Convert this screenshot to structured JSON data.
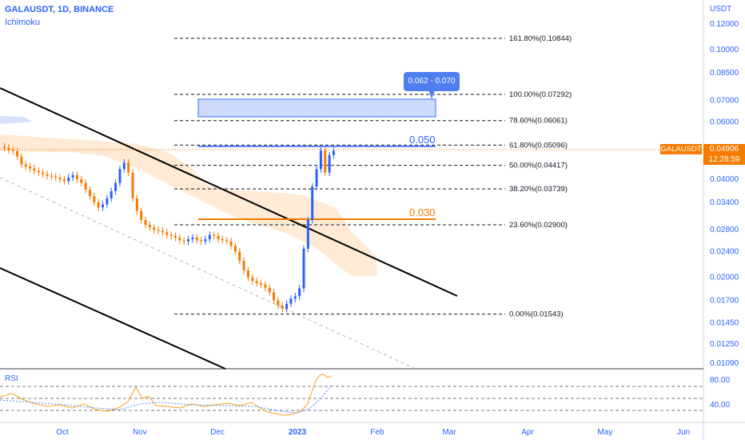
{
  "header": {
    "title": "GALAUSDT, 1D, BINANCE",
    "indicator": "Ichimoku",
    "rsi_label": "RSI",
    "currency": "USDT"
  },
  "price_tag": {
    "symbol": "GALAUSDT",
    "price": "0.04906",
    "countdown": "12:28:59",
    "color": "#f57c00"
  },
  "target_callout": "0.062 - 0.070",
  "levels": {
    "resistance_label": "0.050",
    "support_label": "0.030"
  },
  "chart_data": {
    "type": "candlestick",
    "title": "GALAUSDT, 1D, BINANCE",
    "y_scale": "log",
    "y_ticks": [
      "0.12000",
      "0.10000",
      "0.08500",
      "0.07000",
      "0.06000",
      "0.04000",
      "0.03400",
      "0.02800",
      "0.02400",
      "0.02000",
      "0.01700",
      "0.01450",
      "0.01250",
      "0.01090"
    ],
    "x_ticks": [
      "Oct",
      "Nov",
      "Dec",
      "2023",
      "Feb",
      "Mar",
      "Apr",
      "May",
      "Jun"
    ],
    "fib_levels": [
      {
        "label": "161.80%(0.10844)",
        "value": 0.10844
      },
      {
        "label": "100.00%(0.07292)",
        "value": 0.07292
      },
      {
        "label": "78.60%(0.06061)",
        "value": 0.06061
      },
      {
        "label": "61.80%(0.05096)",
        "value": 0.05096
      },
      {
        "label": "50.00%(0.04417)",
        "value": 0.04417
      },
      {
        "label": "38.20%(0.03739)",
        "value": 0.03739
      },
      {
        "label": "23.60%(0.02900)",
        "value": 0.029
      },
      {
        "label": "0.00%(0.01543)",
        "value": 0.01543
      }
    ],
    "closes": [
      0.05,
      0.0492,
      0.0488,
      0.047,
      0.0445,
      0.0438,
      0.0432,
      0.0425,
      0.042,
      0.0415,
      0.041,
      0.0408,
      0.0405,
      0.04,
      0.0395,
      0.0405,
      0.0412,
      0.04,
      0.039,
      0.0372,
      0.0355,
      0.034,
      0.0328,
      0.0335,
      0.035,
      0.0368,
      0.039,
      0.043,
      0.045,
      0.042,
      0.035,
      0.032,
      0.03,
      0.029,
      0.0285,
      0.028,
      0.0278,
      0.0275,
      0.027,
      0.0268,
      0.0265,
      0.026,
      0.0258,
      0.0262,
      0.0265,
      0.026,
      0.0258,
      0.0262,
      0.027,
      0.0268,
      0.0262,
      0.026,
      0.0258,
      0.025,
      0.024,
      0.0225,
      0.021,
      0.02,
      0.0195,
      0.0192,
      0.019,
      0.0186,
      0.018,
      0.017,
      0.0164,
      0.016,
      0.0166,
      0.0172,
      0.0175,
      0.0185,
      0.0245,
      0.03,
      0.038,
      0.043,
      0.049,
      0.042,
      0.0475,
      0.049
    ],
    "rsi_ticks": [
      "80.00",
      "40.00"
    ]
  }
}
